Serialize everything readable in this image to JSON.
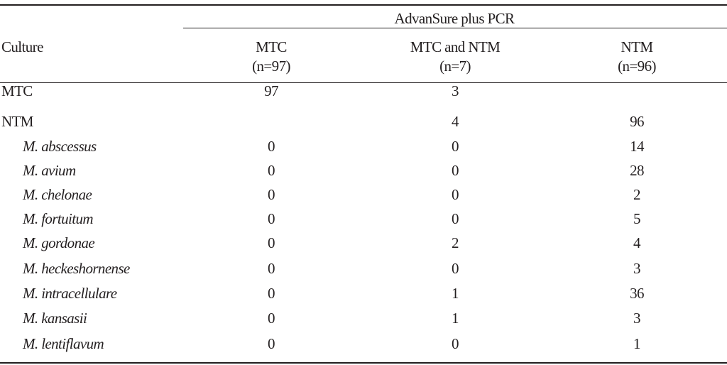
{
  "table": {
    "spanner_header": "AdvanSure plus PCR",
    "row_header": "Culture",
    "columns": [
      {
        "name": "MTC",
        "n": "(n=97)"
      },
      {
        "name": "MTC and NTM",
        "n": "(n=7)"
      },
      {
        "name": "NTM",
        "n": "(n=96)"
      }
    ],
    "rows": [
      {
        "label": "MTC",
        "italic": false,
        "values": [
          "97",
          "3",
          ""
        ]
      },
      {
        "label": "NTM",
        "italic": false,
        "values": [
          "",
          "4",
          "96"
        ]
      },
      {
        "label": "M. abscessus",
        "italic": true,
        "values": [
          "0",
          "0",
          "14"
        ]
      },
      {
        "label": "M. avium",
        "italic": true,
        "values": [
          "0",
          "0",
          "28"
        ]
      },
      {
        "label": "M. chelonae",
        "italic": true,
        "values": [
          "0",
          "0",
          "2"
        ]
      },
      {
        "label": "M. fortuitum",
        "italic": true,
        "values": [
          "0",
          "0",
          "5"
        ]
      },
      {
        "label": "M. gordonae",
        "italic": true,
        "values": [
          "0",
          "2",
          "4"
        ]
      },
      {
        "label": "M. heckeshornense",
        "italic": true,
        "values": [
          "0",
          "0",
          "3"
        ]
      },
      {
        "label": "M. intracellulare",
        "italic": true,
        "values": [
          "0",
          "1",
          "36"
        ]
      },
      {
        "label": "M. kansasii",
        "italic": true,
        "values": [
          "0",
          "1",
          "3"
        ]
      },
      {
        "label": "M. lentiflavum",
        "italic": true,
        "values": [
          "0",
          "0",
          "1"
        ]
      }
    ]
  }
}
